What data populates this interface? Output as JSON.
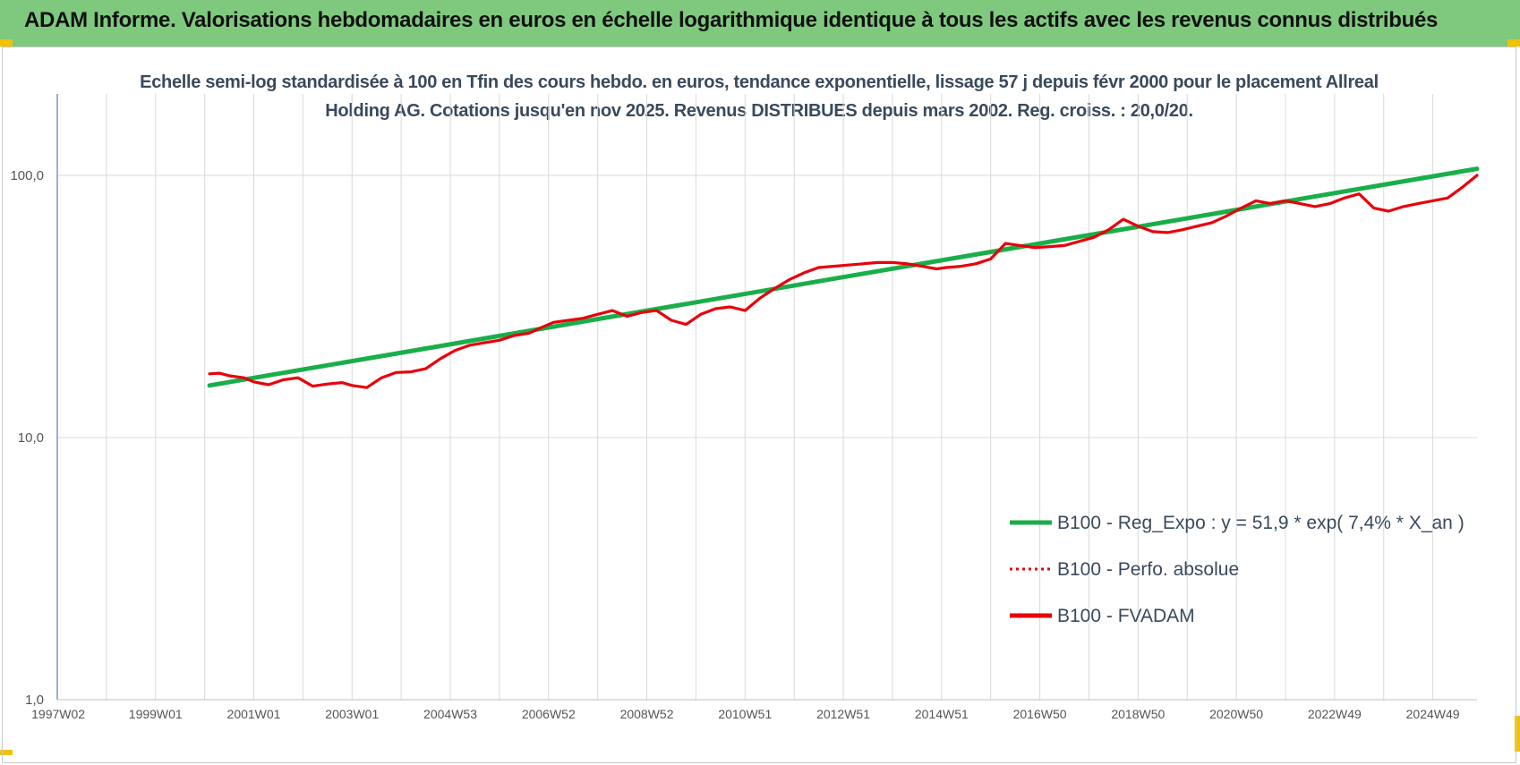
{
  "banner": {
    "title": "ADAM Informe. Valorisations hebdomadaires en euros en échelle logarithmique identique à tous les actifs avec les revenus connus distribués"
  },
  "colors": {
    "banner": "#7fc97f",
    "regression": "#1aae4a",
    "fvadam": "#e8000b",
    "axis": "#4f81bd",
    "grid": "#d9d9d9",
    "corner": "#f2c200"
  },
  "chart_data": {
    "type": "line",
    "title": "Echelle semi-log standardisée à 100 en Tfin des cours hebdo. en euros, tendance exponentielle, lissage 57 j depuis févr 2000 pour le placement Allreal Holding AG. Cotations jusqu'en nov 2025. Revenus DISTRIBUES depuis mars 2002. Reg. croiss. : 20,0/20.",
    "yscale": "log",
    "ylim": [
      1,
      200
    ],
    "xlim": [
      1997.0,
      2025.9
    ],
    "grid": true,
    "legend_position": "lower-right",
    "y_ticks": [
      {
        "value": 1,
        "label": "1,0"
      },
      {
        "value": 10,
        "label": "10,0"
      },
      {
        "value": 100,
        "label": "100,0"
      }
    ],
    "x_ticks": [
      {
        "value": 1997.02,
        "label": "1997W02"
      },
      {
        "value": 1999.0,
        "label": "1999W01"
      },
      {
        "value": 2001.0,
        "label": "2001W01"
      },
      {
        "value": 2003.0,
        "label": "2003W01"
      },
      {
        "value": 2005.0,
        "label": "2004W53"
      },
      {
        "value": 2007.0,
        "label": "2006W52"
      },
      {
        "value": 2009.0,
        "label": "2008W52"
      },
      {
        "value": 2011.0,
        "label": "2010W51"
      },
      {
        "value": 2013.0,
        "label": "2012W51"
      },
      {
        "value": 2015.0,
        "label": "2014W51"
      },
      {
        "value": 2017.0,
        "label": "2016W50"
      },
      {
        "value": 2019.0,
        "label": "2018W50"
      },
      {
        "value": 2021.0,
        "label": "2020W50"
      },
      {
        "value": 2023.0,
        "label": "2022W49"
      },
      {
        "value": 2025.0,
        "label": "2024W49"
      }
    ],
    "series": [
      {
        "name": "B100 - Reg_Expo : y = 51,9 * exp( 7,4% *  X_an )",
        "style": "solid",
        "x": [
          2000.1,
          2025.9
        ],
        "y": [
          15.8,
          106
        ]
      },
      {
        "name": "B100 - Perfo. absolue",
        "style": "dotted",
        "x": [],
        "y": []
      },
      {
        "name": "B100 - FVADAM",
        "style": "solid",
        "x": [
          2000.1,
          2000.3,
          2000.5,
          2000.8,
          2001.0,
          2001.3,
          2001.6,
          2001.9,
          2002.2,
          2002.5,
          2002.8,
          2003.0,
          2003.3,
          2003.6,
          2003.9,
          2004.2,
          2004.5,
          2004.8,
          2005.1,
          2005.4,
          2005.7,
          2006.0,
          2006.3,
          2006.6,
          2006.9,
          2007.1,
          2007.4,
          2007.7,
          2008.0,
          2008.3,
          2008.6,
          2008.9,
          2009.2,
          2009.5,
          2009.8,
          2010.1,
          2010.4,
          2010.7,
          2011.0,
          2011.3,
          2011.6,
          2011.9,
          2012.2,
          2012.5,
          2012.8,
          2013.1,
          2013.4,
          2013.7,
          2014.0,
          2014.3,
          2014.6,
          2014.9,
          2015.1,
          2015.4,
          2015.7,
          2016.0,
          2016.3,
          2016.6,
          2016.9,
          2017.2,
          2017.5,
          2017.8,
          2018.1,
          2018.4,
          2018.7,
          2019.0,
          2019.3,
          2019.6,
          2019.9,
          2020.2,
          2020.5,
          2020.8,
          2021.1,
          2021.4,
          2021.7,
          2022.0,
          2022.3,
          2022.6,
          2022.9,
          2023.2,
          2023.5,
          2023.8,
          2024.1,
          2024.4,
          2024.7,
          2025.0,
          2025.3,
          2025.6,
          2025.9
        ],
        "y": [
          17.5,
          17.6,
          17.2,
          16.9,
          16.3,
          15.9,
          16.6,
          16.9,
          15.7,
          16.0,
          16.2,
          15.8,
          15.5,
          16.9,
          17.7,
          17.8,
          18.3,
          20.0,
          21.5,
          22.5,
          23.0,
          23.5,
          24.5,
          25.0,
          26.5,
          27.5,
          28.0,
          28.5,
          29.5,
          30.5,
          29.0,
          30.0,
          30.5,
          28.0,
          27.0,
          29.5,
          31.0,
          31.5,
          30.5,
          34.0,
          37.0,
          40.0,
          42.5,
          44.5,
          45.0,
          45.5,
          46.0,
          46.5,
          46.5,
          46.0,
          45.0,
          44.0,
          44.5,
          45.0,
          46.0,
          48.0,
          55.0,
          54.0,
          53.0,
          53.5,
          54.0,
          56.0,
          58.0,
          62.0,
          68.0,
          64.0,
          61.0,
          60.5,
          62.0,
          64.0,
          66.0,
          70.0,
          75.0,
          80.0,
          78.0,
          80.0,
          78.0,
          76.0,
          78.0,
          82.0,
          85.0,
          75.0,
          73.0,
          76.0,
          78.0,
          80.0,
          82.0,
          90.0,
          100.0
        ]
      }
    ]
  }
}
